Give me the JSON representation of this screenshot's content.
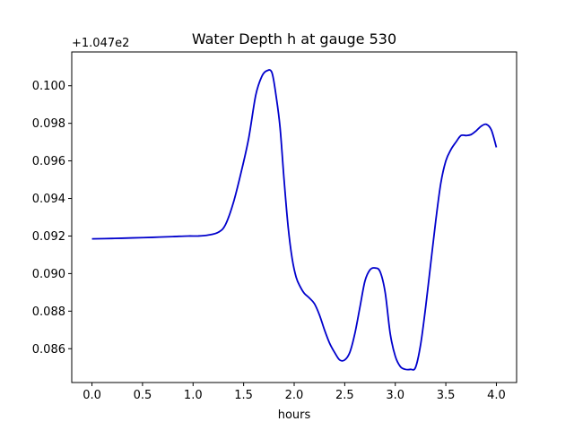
{
  "chart_data": {
    "type": "line",
    "title": "Water Depth h at gauge 530",
    "xlabel": "hours",
    "ylabel": "",
    "y_offset_label": "+1.047e2",
    "xlim": [
      -0.2,
      4.2
    ],
    "ylim": [
      0.0842,
      0.1018
    ],
    "x_ticks": [
      0.0,
      0.5,
      1.0,
      1.5,
      2.0,
      2.5,
      3.0,
      3.5,
      4.0
    ],
    "x_tick_labels": [
      "0.0",
      "0.5",
      "1.0",
      "1.5",
      "2.0",
      "2.5",
      "3.0",
      "3.5",
      "4.0"
    ],
    "y_ticks": [
      0.086,
      0.088,
      0.09,
      0.092,
      0.094,
      0.096,
      0.098,
      0.1
    ],
    "y_tick_labels": [
      "0.086",
      "0.088",
      "0.090",
      "0.092",
      "0.094",
      "0.096",
      "0.098",
      "0.100"
    ],
    "grid": false,
    "line_color": "#0000cc",
    "series": [
      {
        "x": [
          0.0,
          0.2,
          0.4,
          0.6,
          0.8,
          0.95,
          1.05,
          1.15,
          1.25,
          1.32,
          1.4,
          1.48,
          1.55,
          1.62,
          1.68,
          1.73,
          1.78,
          1.82,
          1.86,
          1.9,
          1.94,
          1.98,
          2.02,
          2.06,
          2.1,
          2.15,
          2.2,
          2.25,
          2.3,
          2.35,
          2.4,
          2.45,
          2.5,
          2.55,
          2.6,
          2.65,
          2.7,
          2.75,
          2.8,
          2.85,
          2.9,
          2.95,
          3.0,
          3.05,
          3.1,
          3.15,
          3.2,
          3.25,
          3.3,
          3.35,
          3.4,
          3.45,
          3.5,
          3.55,
          3.6,
          3.65,
          3.7,
          3.75,
          3.8,
          3.85,
          3.9,
          3.95,
          4.0
        ],
        "y": [
          0.09185,
          0.09187,
          0.0919,
          0.09193,
          0.09197,
          0.092,
          0.092,
          0.09205,
          0.0922,
          0.0926,
          0.0938,
          0.0955,
          0.0972,
          0.0995,
          0.1005,
          0.1008,
          0.1007,
          0.0995,
          0.0978,
          0.095,
          0.0925,
          0.0908,
          0.0898,
          0.0893,
          0.08895,
          0.0887,
          0.0884,
          0.0878,
          0.087,
          0.0863,
          0.0858,
          0.0854,
          0.0854,
          0.0858,
          0.0868,
          0.0882,
          0.0896,
          0.0902,
          0.0903,
          0.0901,
          0.089,
          0.0868,
          0.0856,
          0.08505,
          0.0849,
          0.0849,
          0.085,
          0.0862,
          0.0882,
          0.0905,
          0.0928,
          0.0948,
          0.096,
          0.0966,
          0.097,
          0.09735,
          0.09735,
          0.0974,
          0.0976,
          0.09785,
          0.09795,
          0.09765,
          0.09672
        ]
      }
    ]
  }
}
